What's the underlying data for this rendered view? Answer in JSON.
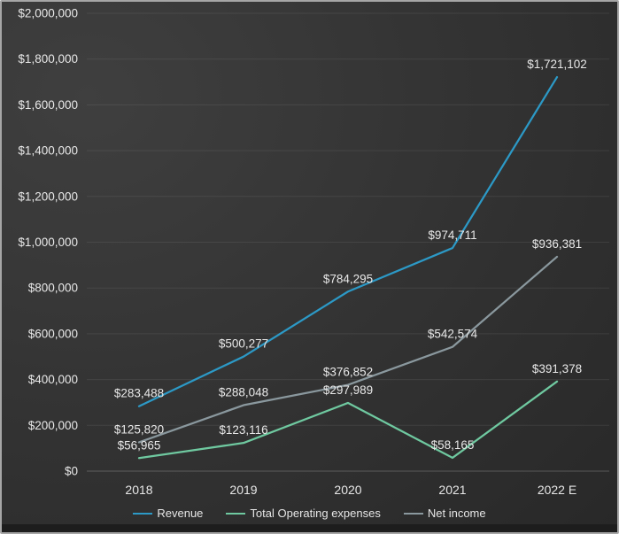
{
  "chart_data": {
    "type": "line",
    "title": "",
    "xlabel": "",
    "ylabel": "",
    "categories": [
      "2018",
      "2019",
      "2020",
      "2021",
      "2022 E"
    ],
    "series": [
      {
        "name": "Revenue",
        "color": "#2c99c6",
        "values": [
          283488,
          500277,
          784295,
          974711,
          1721102
        ],
        "labels": [
          "$283,488",
          "$500,277",
          "$784,295",
          "$974,711",
          "$1,721,102"
        ]
      },
      {
        "name": "Total Operating expenses",
        "color": "#6fc9a0",
        "values": [
          56965,
          123116,
          297989,
          58165,
          391378
        ],
        "labels": [
          "$56,965",
          "$123,116",
          "$297,989",
          "$58,165",
          "$391,378"
        ]
      },
      {
        "name": "Net income",
        "color": "#8a989e",
        "values": [
          125820,
          288048,
          376852,
          542574,
          936381
        ],
        "labels": [
          "$125,820",
          "$288,048",
          "$376,852",
          "$542,574",
          "$936,381"
        ]
      }
    ],
    "ylim": [
      0,
      2000000
    ],
    "ytick_step": 200000,
    "ytick_labels": [
      "$0",
      "$200,000",
      "$400,000",
      "$600,000",
      "$800,000",
      "$1,000,000",
      "$1,200,000",
      "$1,400,000",
      "$1,600,000",
      "$1,800,000",
      "$2,000,000"
    ],
    "grid": true,
    "legend_position": "bottom"
  },
  "style": {
    "background_light": "#3f3f3f",
    "background_dark": "#262626",
    "gridline_color": "rgba(255,255,255,0.08)",
    "zero_line_color": "rgba(255,255,255,0.22)",
    "axis_text_color": "#e8e8e8",
    "data_label_color": "#f1f1f1",
    "frame_border_color": "#a6a6a6",
    "bottom_strip_color": "#1d1d1d"
  }
}
